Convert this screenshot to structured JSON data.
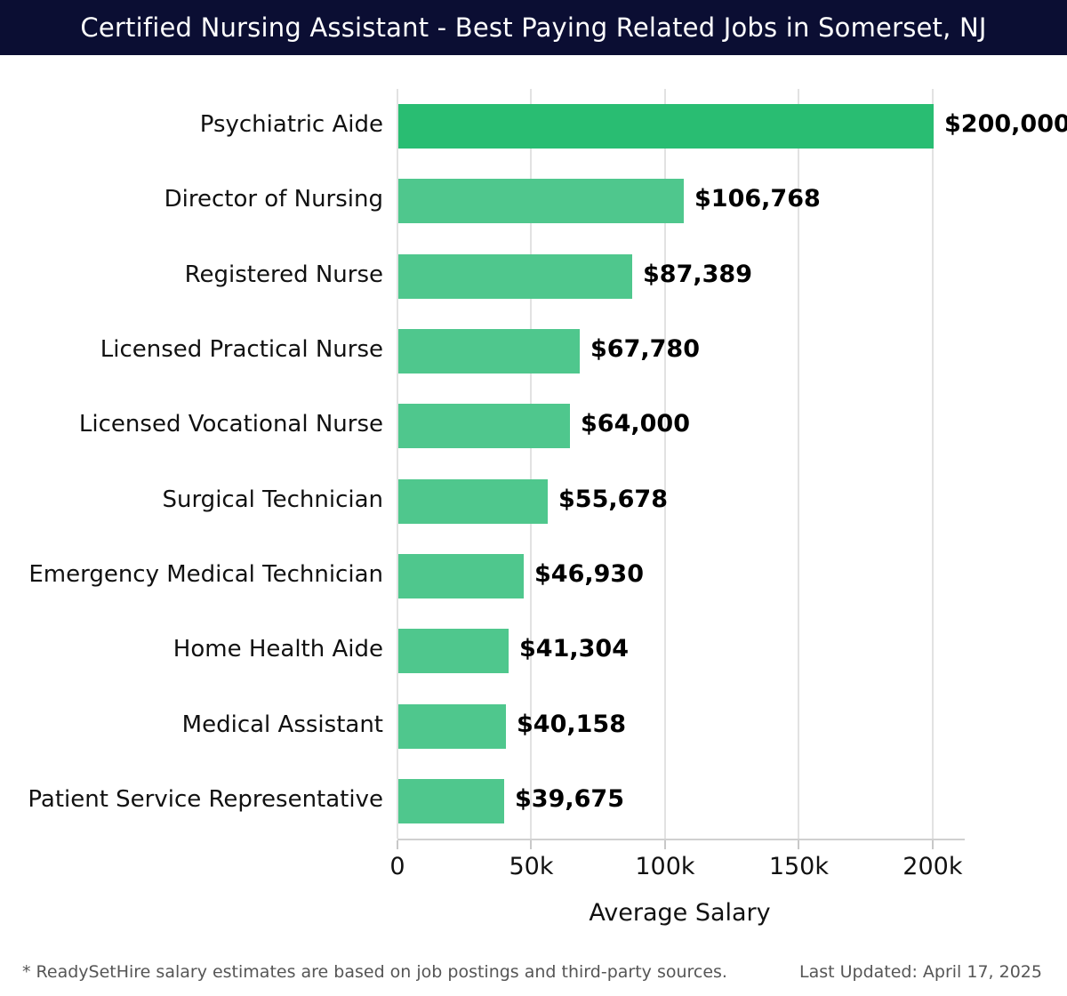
{
  "header": {
    "title": "Certified Nursing Assistant - Best Paying Related Jobs in Somerset, NJ",
    "bg_color": "#0b0e33"
  },
  "chart_data": {
    "type": "bar",
    "orientation": "horizontal",
    "title": "Certified Nursing Assistant - Best Paying Related Jobs in Somerset, NJ",
    "xlabel": "Average Salary",
    "ylabel": "",
    "categories": [
      "Psychiatric Aide",
      "Director of Nursing",
      "Registered Nurse",
      "Licensed Practical Nurse",
      "Licensed Vocational Nurse",
      "Surgical Technician",
      "Emergency Medical Technician",
      "Home Health Aide",
      "Medical Assistant",
      "Patient Service Representative"
    ],
    "values": [
      200000,
      106768,
      87389,
      67780,
      64000,
      55678,
      46930,
      41304,
      40158,
      39675
    ],
    "value_labels": [
      "$200,000",
      "$106,768",
      "$87,389",
      "$67,780",
      "$64,000",
      "$55,678",
      "$46,930",
      "$41,304",
      "$40,158",
      "$39,675"
    ],
    "xlim": [
      0,
      211000
    ],
    "x_ticks": [
      {
        "value": 0,
        "label": "0"
      },
      {
        "value": 50000,
        "label": "50k"
      },
      {
        "value": 100000,
        "label": "100k"
      },
      {
        "value": 150000,
        "label": "150k"
      },
      {
        "value": 200000,
        "label": "200k"
      }
    ],
    "grid": true,
    "legend": false,
    "bar_color": "#4fc78d",
    "highlight_color": "#29bd72",
    "highlight_index": 0,
    "grid_color": "#e2e2e2"
  },
  "footer": {
    "disclaimer": "* ReadySetHire salary estimates are based on job postings and third-party sources.",
    "last_updated": "Last Updated: April 17, 2025"
  }
}
